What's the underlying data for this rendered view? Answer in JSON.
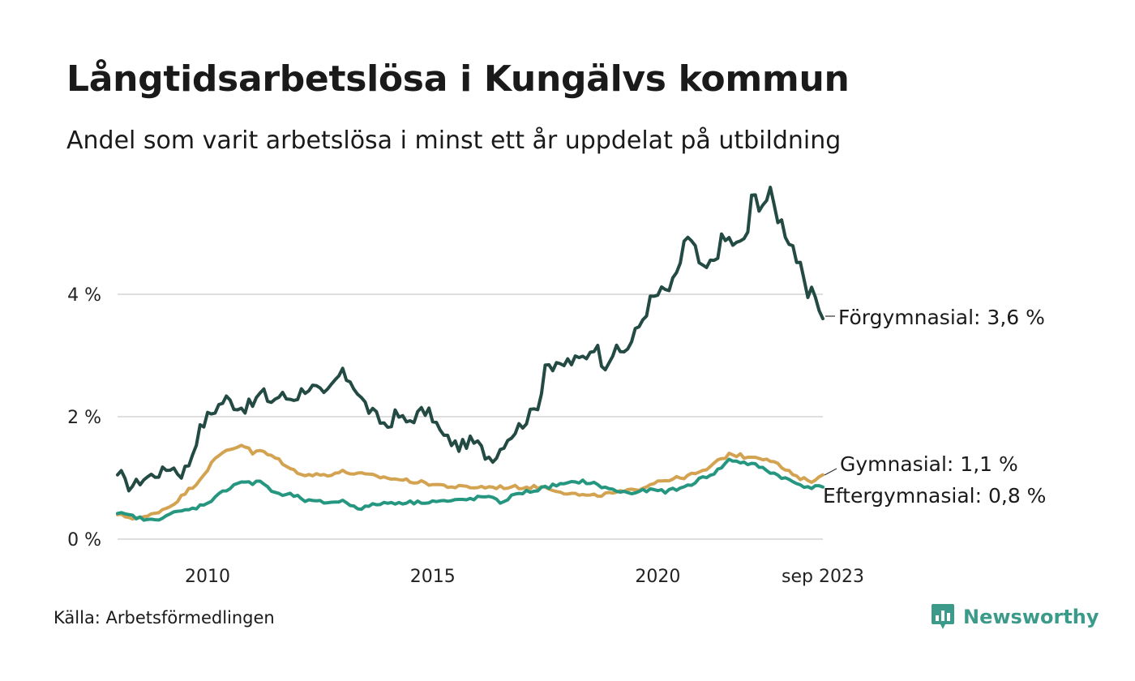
{
  "title": "Långtidsarbetslösa i Kungälvs kommun",
  "subtitle": "Andel som varit arbetslösa i minst ett år uppdelat på utbildning",
  "source": "Källa: Arbetsförmedlingen",
  "brand": {
    "name": "Newsworthy",
    "icon": "newsworthy-logo-icon",
    "color": "#3c9a8a"
  },
  "chart_data": {
    "type": "line",
    "x_start": "2008-01",
    "x_end": "2023-09",
    "step": "month",
    "xticks": [
      {
        "value": 2010,
        "label": "2010"
      },
      {
        "value": 2015,
        "label": "2015"
      },
      {
        "value": 2020,
        "label": "2020"
      },
      {
        "value": 2023.667,
        "label": "sep 2023"
      }
    ],
    "yticks": [
      {
        "value": 0,
        "label": "0 %"
      },
      {
        "value": 2,
        "label": "2 %"
      },
      {
        "value": 4,
        "label": "4 %"
      }
    ],
    "ylim": [
      0,
      5.8
    ],
    "grid": true,
    "series": [
      {
        "name": "Förgymnasial",
        "label": "Förgymnasial: 3,6 %",
        "color": "#244a44",
        "anchors": [
          [
            2008.0,
            1.05
          ],
          [
            2008.1,
            1.05
          ],
          [
            2008.2,
            0.85
          ],
          [
            2008.4,
            0.9
          ],
          [
            2008.6,
            1.0
          ],
          [
            2009.0,
            1.1
          ],
          [
            2009.2,
            1.2
          ],
          [
            2009.4,
            1.05
          ],
          [
            2009.6,
            1.25
          ],
          [
            2009.8,
            1.75
          ],
          [
            2010.0,
            2.0
          ],
          [
            2010.2,
            2.15
          ],
          [
            2010.4,
            2.3
          ],
          [
            2010.6,
            2.2
          ],
          [
            2010.8,
            2.15
          ],
          [
            2011.0,
            2.2
          ],
          [
            2011.2,
            2.4
          ],
          [
            2011.4,
            2.25
          ],
          [
            2011.6,
            2.35
          ],
          [
            2011.8,
            2.3
          ],
          [
            2012.0,
            2.35
          ],
          [
            2012.2,
            2.5
          ],
          [
            2012.4,
            2.45
          ],
          [
            2012.6,
            2.3
          ],
          [
            2012.8,
            2.55
          ],
          [
            2012.95,
            2.7
          ],
          [
            2013.2,
            2.6
          ],
          [
            2013.4,
            2.3
          ],
          [
            2013.6,
            2.1
          ],
          [
            2013.8,
            1.95
          ],
          [
            2014.0,
            1.85
          ],
          [
            2014.2,
            2.05
          ],
          [
            2014.4,
            1.9
          ],
          [
            2014.6,
            2.0
          ],
          [
            2014.8,
            2.1
          ],
          [
            2015.0,
            2.0
          ],
          [
            2015.2,
            1.7
          ],
          [
            2015.4,
            1.6
          ],
          [
            2015.6,
            1.5
          ],
          [
            2015.8,
            1.6
          ],
          [
            2016.0,
            1.55
          ],
          [
            2016.2,
            1.35
          ],
          [
            2016.4,
            1.35
          ],
          [
            2016.6,
            1.6
          ],
          [
            2016.8,
            1.75
          ],
          [
            2017.0,
            1.9
          ],
          [
            2017.2,
            2.05
          ],
          [
            2017.4,
            2.3
          ],
          [
            2017.5,
            2.95
          ],
          [
            2017.7,
            2.75
          ],
          [
            2018.0,
            2.9
          ],
          [
            2018.2,
            2.9
          ],
          [
            2018.4,
            3.0
          ],
          [
            2018.6,
            3.2
          ],
          [
            2018.8,
            2.85
          ],
          [
            2019.0,
            3.05
          ],
          [
            2019.2,
            3.05
          ],
          [
            2019.4,
            3.2
          ],
          [
            2019.6,
            3.5
          ],
          [
            2019.8,
            3.85
          ],
          [
            2020.0,
            4.0
          ],
          [
            2020.2,
            4.05
          ],
          [
            2020.4,
            4.2
          ],
          [
            2020.5,
            4.55
          ],
          [
            2020.6,
            4.95
          ],
          [
            2020.8,
            4.75
          ],
          [
            2021.0,
            4.35
          ],
          [
            2021.2,
            4.5
          ],
          [
            2021.4,
            4.85
          ],
          [
            2021.6,
            4.9
          ],
          [
            2021.8,
            4.75
          ],
          [
            2022.0,
            5.05
          ],
          [
            2022.1,
            5.6
          ],
          [
            2022.3,
            5.5
          ],
          [
            2022.5,
            5.6
          ],
          [
            2022.6,
            5.4
          ],
          [
            2022.8,
            5.1
          ],
          [
            2023.0,
            4.8
          ],
          [
            2023.2,
            4.3
          ],
          [
            2023.3,
            3.95
          ],
          [
            2023.5,
            4.0
          ],
          [
            2023.6,
            3.8
          ],
          [
            2023.667,
            3.6
          ]
        ]
      },
      {
        "name": "Gymnasial",
        "label": "Gymnasial: 1,1 %",
        "color": "#d3a352",
        "anchors": [
          [
            2008.0,
            0.4
          ],
          [
            2008.3,
            0.35
          ],
          [
            2008.6,
            0.35
          ],
          [
            2008.9,
            0.45
          ],
          [
            2009.2,
            0.55
          ],
          [
            2009.5,
            0.75
          ],
          [
            2009.8,
            0.95
          ],
          [
            2010.1,
            1.25
          ],
          [
            2010.4,
            1.45
          ],
          [
            2010.6,
            1.5
          ],
          [
            2010.8,
            1.55
          ],
          [
            2011.0,
            1.4
          ],
          [
            2011.2,
            1.45
          ],
          [
            2011.4,
            1.35
          ],
          [
            2011.6,
            1.3
          ],
          [
            2011.8,
            1.15
          ],
          [
            2012.2,
            1.05
          ],
          [
            2012.6,
            1.05
          ],
          [
            2013.0,
            1.1
          ],
          [
            2013.5,
            1.05
          ],
          [
            2014.0,
            1.0
          ],
          [
            2014.5,
            0.95
          ],
          [
            2015.0,
            0.9
          ],
          [
            2015.5,
            0.85
          ],
          [
            2016.0,
            0.85
          ],
          [
            2016.5,
            0.85
          ],
          [
            2017.0,
            0.85
          ],
          [
            2017.5,
            0.85
          ],
          [
            2018.0,
            0.75
          ],
          [
            2018.5,
            0.7
          ],
          [
            2019.0,
            0.75
          ],
          [
            2019.5,
            0.8
          ],
          [
            2020.0,
            0.95
          ],
          [
            2020.5,
            1.0
          ],
          [
            2021.0,
            1.1
          ],
          [
            2021.3,
            1.25
          ],
          [
            2021.6,
            1.4
          ],
          [
            2021.9,
            1.35
          ],
          [
            2022.2,
            1.35
          ],
          [
            2022.5,
            1.3
          ],
          [
            2022.8,
            1.15
          ],
          [
            2023.1,
            1.0
          ],
          [
            2023.4,
            0.95
          ],
          [
            2023.667,
            1.05
          ]
        ]
      },
      {
        "name": "Eftergymnasial",
        "label": "Eftergymnasial: 0,8 %",
        "color": "#25967f",
        "anchors": [
          [
            2008.0,
            0.42
          ],
          [
            2008.3,
            0.38
          ],
          [
            2008.6,
            0.32
          ],
          [
            2008.8,
            0.3
          ],
          [
            2009.1,
            0.4
          ],
          [
            2009.4,
            0.45
          ],
          [
            2009.7,
            0.5
          ],
          [
            2010.0,
            0.6
          ],
          [
            2010.3,
            0.75
          ],
          [
            2010.6,
            0.9
          ],
          [
            2010.8,
            0.95
          ],
          [
            2011.0,
            0.9
          ],
          [
            2011.2,
            0.95
          ],
          [
            2011.4,
            0.8
          ],
          [
            2011.6,
            0.72
          ],
          [
            2011.9,
            0.72
          ],
          [
            2012.2,
            0.62
          ],
          [
            2012.6,
            0.6
          ],
          [
            2013.0,
            0.62
          ],
          [
            2013.4,
            0.5
          ],
          [
            2013.8,
            0.58
          ],
          [
            2014.2,
            0.6
          ],
          [
            2014.6,
            0.6
          ],
          [
            2015.0,
            0.62
          ],
          [
            2015.4,
            0.62
          ],
          [
            2015.8,
            0.65
          ],
          [
            2016.2,
            0.7
          ],
          [
            2016.5,
            0.6
          ],
          [
            2016.9,
            0.75
          ],
          [
            2017.3,
            0.8
          ],
          [
            2017.7,
            0.88
          ],
          [
            2018.0,
            0.9
          ],
          [
            2018.3,
            0.95
          ],
          [
            2018.6,
            0.9
          ],
          [
            2019.0,
            0.8
          ],
          [
            2019.4,
            0.75
          ],
          [
            2019.8,
            0.8
          ],
          [
            2020.2,
            0.78
          ],
          [
            2020.6,
            0.85
          ],
          [
            2021.0,
            1.0
          ],
          [
            2021.3,
            1.1
          ],
          [
            2021.6,
            1.3
          ],
          [
            2021.9,
            1.25
          ],
          [
            2022.2,
            1.2
          ],
          [
            2022.5,
            1.1
          ],
          [
            2022.8,
            1.0
          ],
          [
            2023.1,
            0.9
          ],
          [
            2023.4,
            0.85
          ],
          [
            2023.667,
            0.85
          ]
        ]
      }
    ]
  }
}
